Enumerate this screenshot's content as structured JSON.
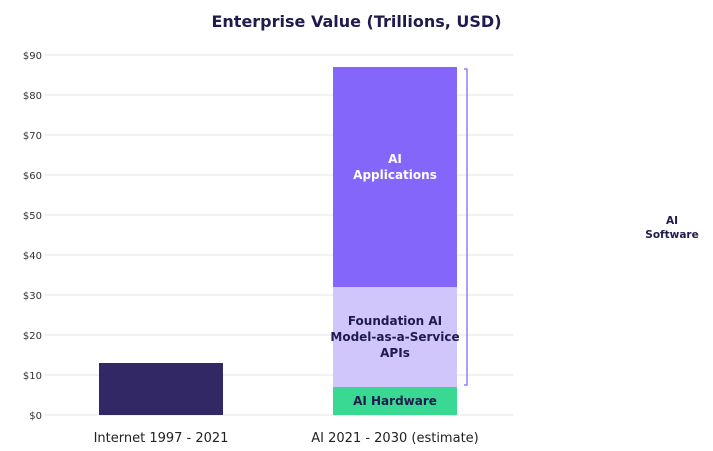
{
  "chart_data": {
    "type": "bar",
    "stacked": true,
    "title": "Enterprise Value (Trillions, USD)",
    "xlabel": "",
    "ylabel": "",
    "ylim": [
      0,
      90
    ],
    "yticks": [
      0,
      10,
      20,
      30,
      40,
      50,
      60,
      70,
      80,
      90
    ],
    "ytick_labels": [
      "$0",
      "$10",
      "$20",
      "$30",
      "$40",
      "$50",
      "$60",
      "$70",
      "$80",
      "$90"
    ],
    "grid": true,
    "categories": [
      "Internet 1997 - 2021",
      "AI 2021 - 2030 (estimate)"
    ],
    "series": [
      {
        "name": "Internet",
        "label": "",
        "values": [
          13,
          0
        ],
        "color": "#312865",
        "text_color": "#ffffff"
      },
      {
        "name": "AI Hardware",
        "label": "AI Hardware",
        "values": [
          0,
          7
        ],
        "color": "#3ad993",
        "text_color": "#1f1b4d"
      },
      {
        "name": "Foundation AI Model-as-a-Service APIs",
        "label": "Foundation AI\nModel-as-a-Service\nAPIs",
        "values": [
          0,
          25
        ],
        "color": "#d0c6fc",
        "text_color": "#1f1b4d"
      },
      {
        "name": "AI Applications",
        "label": "AI\nApplications",
        "values": [
          0,
          55
        ],
        "color": "#8466fb",
        "text_color": "#ffffff"
      }
    ],
    "annotations": [
      {
        "text": "AI\nSoftware",
        "spans_series": [
          "Foundation AI Model-as-a-Service APIs",
          "AI Applications"
        ],
        "range": [
          7,
          87
        ],
        "color": "#8466fb"
      }
    ]
  }
}
